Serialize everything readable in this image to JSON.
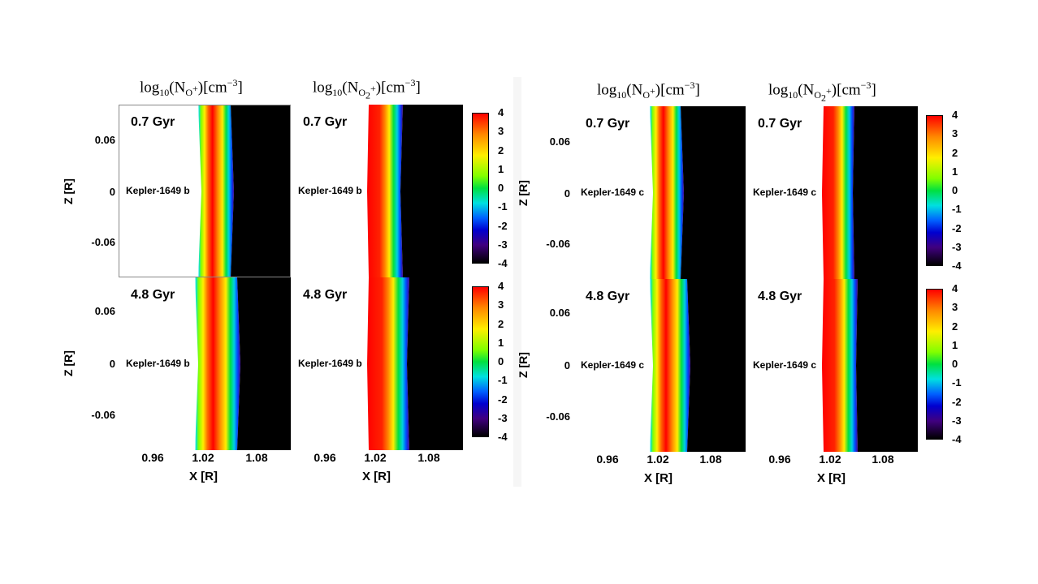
{
  "figure": {
    "left": {
      "titles": [
        "log10(N_O+)[cm^-3]",
        "log10(N_O2+)[cm^-3]"
      ],
      "rows": [
        {
          "age": "0.7 Gyr",
          "planet": "Kepler-1649 b"
        },
        {
          "age": "4.8 Gyr",
          "planet": "Kepler-1649 b"
        }
      ]
    },
    "right": {
      "titles": [
        "log10(N_O+)[cm^-3]",
        "log10(N_O2+)[cm^-3]"
      ],
      "rows": [
        {
          "age": "0.7 Gyr",
          "planet": "Kepler-1649 c"
        },
        {
          "age": "4.8 Gyr",
          "planet": "Kepler-1649 c"
        }
      ]
    }
  },
  "chart_data": {
    "type": "heatmap",
    "xlabel": "X [R]",
    "ylabel": "Z [R]",
    "x_ticks": [
      "0.96",
      "1.02",
      "1.08"
    ],
    "y_ticks": [
      "0.06",
      "0",
      "-0.06"
    ],
    "colorbar": {
      "ticks": [
        "4",
        "3",
        "2",
        "1",
        "0",
        "-1",
        "-2",
        "-3",
        "-4"
      ],
      "range": [
        -4,
        4
      ],
      "colormap": "rainbow"
    }
  }
}
